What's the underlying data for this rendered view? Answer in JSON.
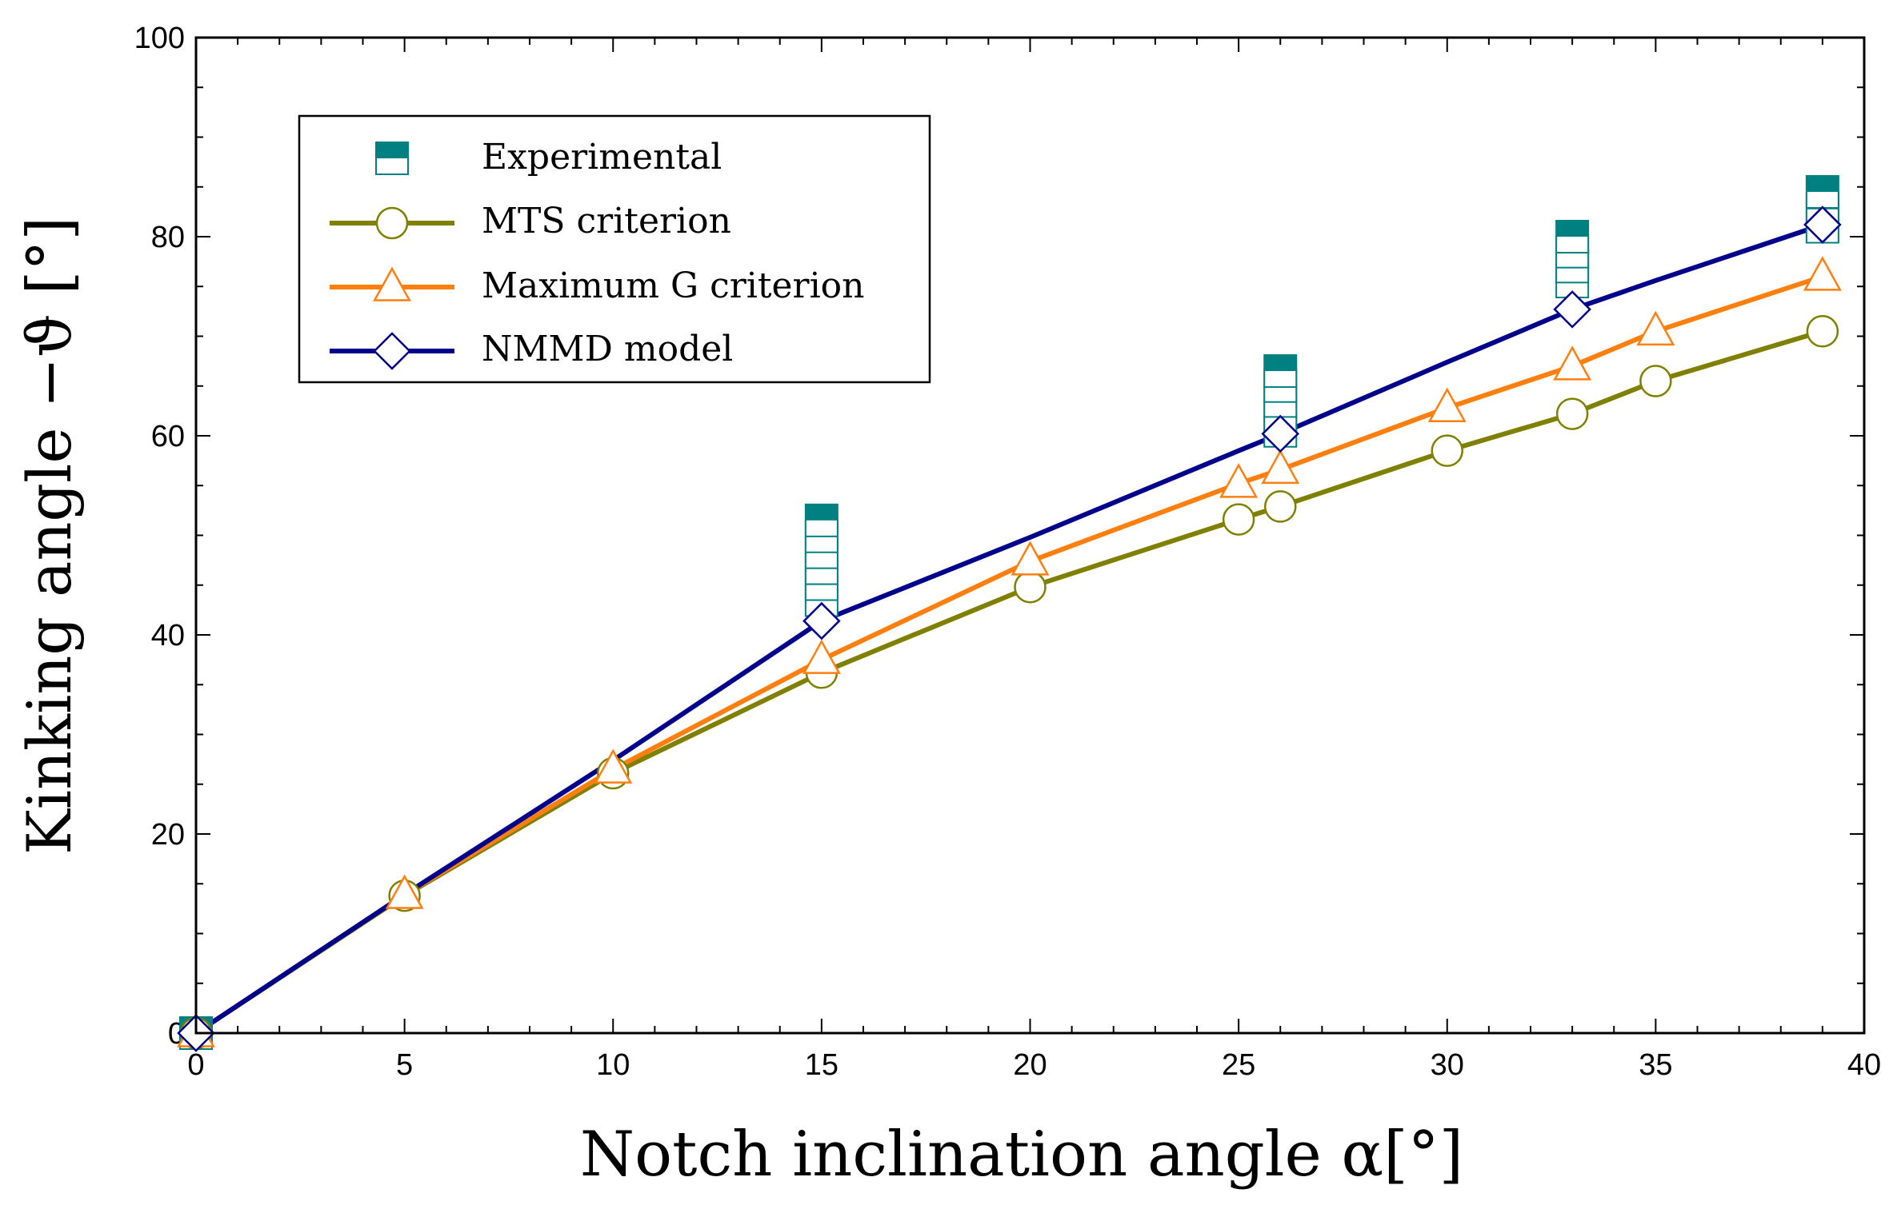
{
  "chart_data": {
    "type": "line",
    "xlabel": "Notch inclination angle α[°]",
    "ylabel": "Kinking angle −ϑ [°]",
    "xlim": [
      0,
      40
    ],
    "ylim": [
      0,
      100
    ],
    "xticks": [
      0,
      5,
      10,
      15,
      20,
      25,
      30,
      35,
      40
    ],
    "yticks": [
      0,
      20,
      40,
      60,
      80,
      100
    ],
    "grid": false,
    "legend_position": "top-left",
    "series": [
      {
        "name": "Experimental",
        "kind": "scatter-range",
        "marker": "half-filled-square",
        "color": "#008080",
        "points": [
          {
            "x": 0,
            "y": [
              0,
              0
            ]
          },
          {
            "x": 15,
            "y": [
              43.5,
              51.5
            ]
          },
          {
            "x": 26,
            "y": [
              60.5,
              66.5
            ]
          },
          {
            "x": 33,
            "y": [
              75.5,
              80
            ]
          },
          {
            "x": 39,
            "y": [
              81,
              84.5
            ]
          }
        ]
      },
      {
        "name": "MTS criterion",
        "marker": "circle",
        "color": "#808000",
        "x": [
          0,
          5,
          10,
          15,
          20,
          25,
          26,
          30,
          33,
          35,
          39
        ],
        "y": [
          0,
          13.8,
          26.1,
          36.2,
          44.8,
          51.6,
          52.9,
          58.5,
          62.2,
          65.5,
          70.5
        ]
      },
      {
        "name": "Maximum G criterion",
        "marker": "triangle",
        "color": "#ff7f0e",
        "x": [
          0,
          5,
          10,
          15,
          20,
          25,
          26,
          30,
          33,
          35,
          39
        ],
        "y": [
          0,
          13.9,
          26.5,
          37.5,
          47.4,
          55.2,
          56.6,
          62.8,
          67.0,
          70.5,
          76.0
        ]
      },
      {
        "name": "NMMD model",
        "marker": "diamond",
        "color": "#00008b",
        "x": [
          0,
          15,
          26,
          33,
          39
        ],
        "y": [
          0,
          41.4,
          60.2,
          72.7,
          81.2
        ],
        "line_x": [
          0,
          5,
          10,
          15,
          20,
          25,
          26,
          30,
          33,
          35,
          39
        ],
        "line_y": [
          0,
          13.9,
          27.4,
          41.4,
          49.8,
          58.5,
          60.2,
          67.4,
          72.7,
          75.6,
          81.2
        ]
      }
    ]
  }
}
